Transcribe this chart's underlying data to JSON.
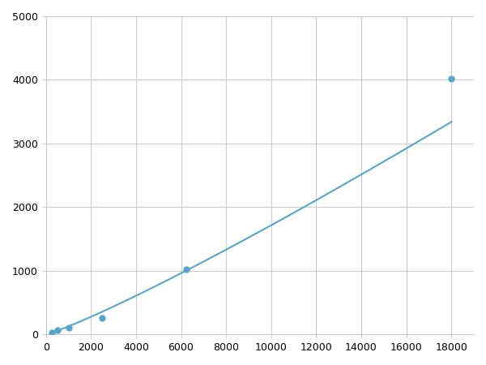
{
  "x_points": [
    250,
    500,
    1000,
    2500,
    6250,
    18000
  ],
  "y_points": [
    30,
    65,
    110,
    260,
    1020,
    4020
  ],
  "line_color": "#5ba3c9",
  "marker_color": "#5ba3c9",
  "marker_size": 5,
  "line_width": 1.5,
  "xlim": [
    0,
    19000
  ],
  "ylim": [
    0,
    5000
  ],
  "xticks": [
    0,
    2000,
    4000,
    6000,
    8000,
    10000,
    12000,
    14000,
    16000,
    18000
  ],
  "yticks": [
    0,
    1000,
    2000,
    3000,
    4000,
    5000
  ],
  "grid_color": "#cccccc",
  "background_color": "#ffffff",
  "tick_fontsize": 9
}
